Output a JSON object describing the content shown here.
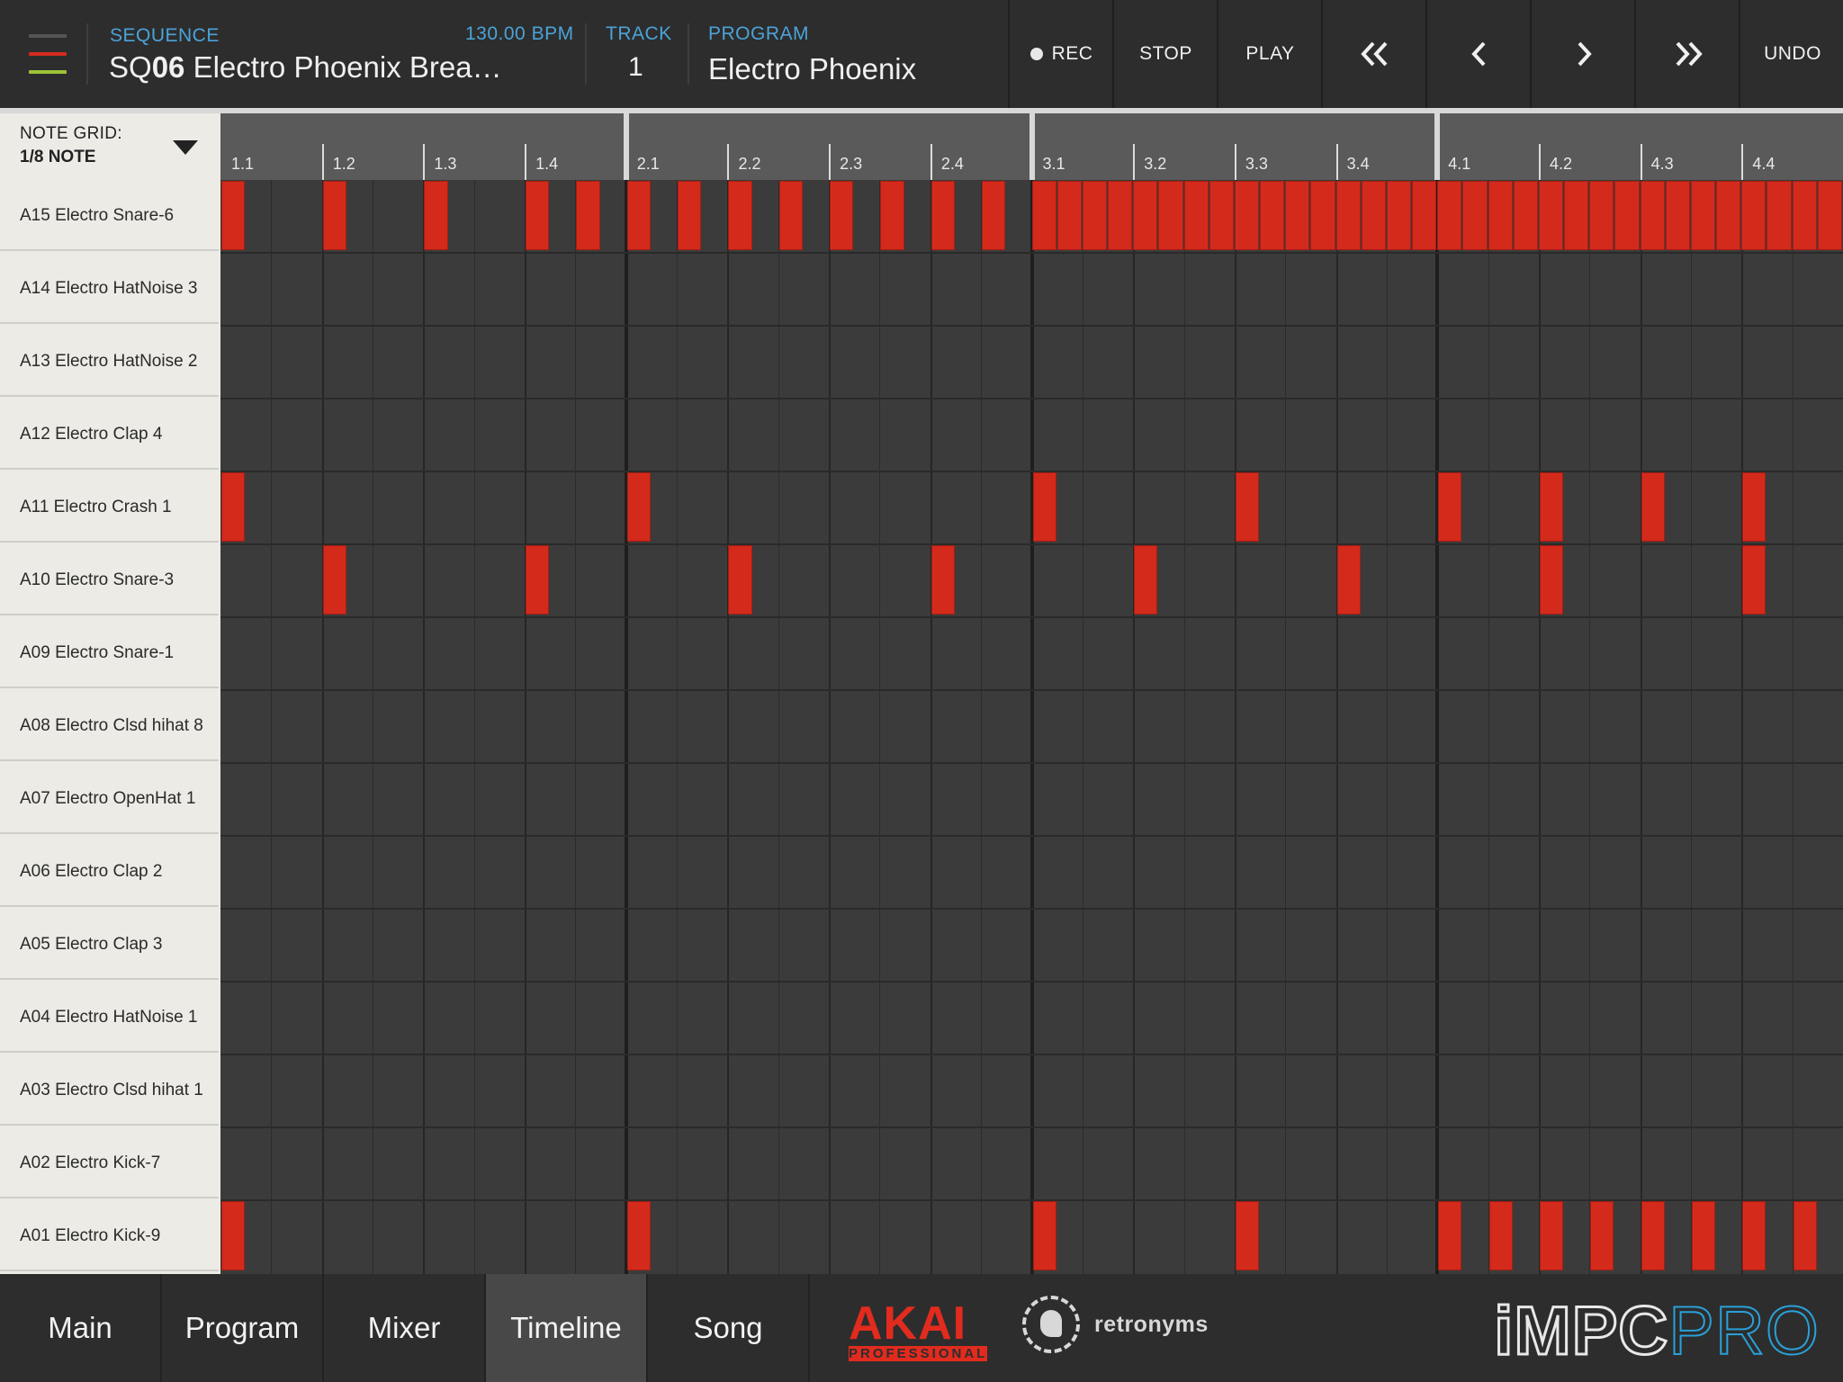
{
  "header": {
    "menu_icon": "hamburger-menu-icon",
    "sequence_label": "SEQUENCE",
    "sequence_prefix": "SQ",
    "sequence_number": "06",
    "sequence_name": "Electro Phoenix Brea…",
    "bpm": "130.00 BPM",
    "track_label": "TRACK",
    "track_value": "1",
    "program_label": "PROGRAM",
    "program_value": "Electro Phoenix"
  },
  "transport": {
    "rec": "REC",
    "stop": "STOP",
    "play": "PLAY",
    "rewind_icon": "double-chevron-left-icon",
    "back_icon": "chevron-left-icon",
    "forward_icon": "chevron-right-icon",
    "fast_forward_icon": "double-chevron-right-icon",
    "undo": "UNDO"
  },
  "note_grid": {
    "label": "NOTE GRID:",
    "value": "1/8 NOTE",
    "dropdown_icon": "triangle-down-icon"
  },
  "ruler": {
    "beats": [
      "1.1",
      "1.2",
      "1.3",
      "1.4",
      "2.1",
      "2.2",
      "2.3",
      "2.4",
      "3.1",
      "3.2",
      "3.3",
      "3.4",
      "4.1",
      "4.2",
      "4.3",
      "4.4"
    ]
  },
  "grid": {
    "steps": 32,
    "rows": [
      {
        "label": "A15 Electro Snare-6",
        "notes": [
          0,
          4,
          8,
          12,
          14,
          16,
          18,
          20,
          22,
          24,
          26,
          28,
          30
        ],
        "ranges": [
          [
            32,
            35
          ],
          [
            36,
            39
          ],
          [
            40,
            43
          ],
          [
            44,
            47
          ],
          [
            48,
            63
          ]
        ]
      },
      {
        "label": "A14 Electro HatNoise 3",
        "notes": [],
        "ranges": []
      },
      {
        "label": "A13 Electro HatNoise 2",
        "notes": [],
        "ranges": []
      },
      {
        "label": "A12 Electro Clap 4",
        "notes": [],
        "ranges": []
      },
      {
        "label": "A11 Electro Crash 1",
        "notes": [
          0,
          16,
          32,
          40,
          48,
          52,
          56,
          60
        ],
        "ranges": []
      },
      {
        "label": "A10 Electro Snare-3",
        "notes": [
          4,
          12,
          20,
          28,
          36,
          44,
          52,
          60
        ],
        "ranges": []
      },
      {
        "label": "A09 Electro Snare-1",
        "notes": [],
        "ranges": []
      },
      {
        "label": "A08 Electro Clsd hihat 8",
        "notes": [],
        "ranges": []
      },
      {
        "label": "A07 Electro OpenHat 1",
        "notes": [],
        "ranges": []
      },
      {
        "label": "A06 Electro Clap 2",
        "notes": [],
        "ranges": []
      },
      {
        "label": "A05 Electro Clap 3",
        "notes": [],
        "ranges": []
      },
      {
        "label": "A04 Electro HatNoise 1",
        "notes": [],
        "ranges": []
      },
      {
        "label": "A03 Electro Clsd hihat 1",
        "notes": [],
        "ranges": []
      },
      {
        "label": "A02 Electro Kick-7",
        "notes": [],
        "ranges": []
      },
      {
        "label": "A01 Electro Kick-9",
        "notes": [
          0,
          16,
          32,
          40,
          48,
          50,
          52,
          54,
          56,
          58,
          60,
          62
        ],
        "ranges": []
      }
    ]
  },
  "tabs": [
    {
      "label": "Main",
      "active": false
    },
    {
      "label": "Program",
      "active": false
    },
    {
      "label": "Mixer",
      "active": false
    },
    {
      "label": "Timeline",
      "active": true
    },
    {
      "label": "Song",
      "active": false
    }
  ],
  "branding": {
    "akai": "AKAI",
    "akai_sub": "PROFESSIONAL",
    "retronyms": "retronyms",
    "impc": "iMPC",
    "pro": "PRO"
  },
  "colors": {
    "note": "#d32a1c",
    "accent_blue": "#4ba3d8",
    "panel": "#2d2d2d",
    "grid": "#3b3b3b"
  }
}
